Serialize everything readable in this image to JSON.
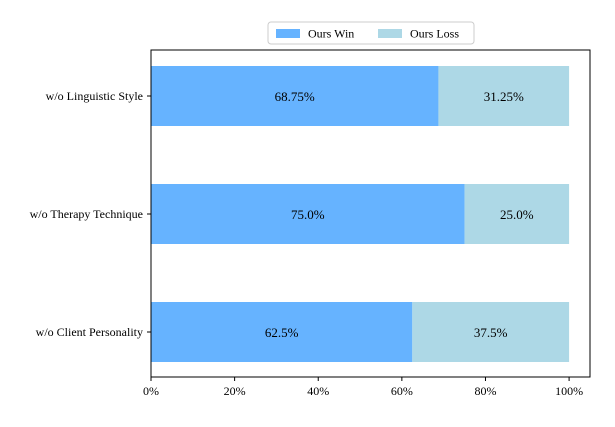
{
  "chart_data": {
    "type": "bar",
    "orientation": "horizontal",
    "stacked": true,
    "categories": [
      "w/o Linguistic Style",
      "w/o Therapy Technique",
      "w/o Client Personality"
    ],
    "series": [
      {
        "name": "Ours Win",
        "values": [
          68.75,
          75.0,
          62.5
        ],
        "labels": [
          "68.75%",
          "75.0%",
          "62.5%"
        ],
        "color": "#66b3ff"
      },
      {
        "name": "Ours Loss",
        "values": [
          31.25,
          25.0,
          37.5
        ],
        "labels": [
          "31.25%",
          "25.0%",
          "37.5%"
        ],
        "color": "#add8e6"
      }
    ],
    "xlim": [
      0,
      105
    ],
    "xticks": [
      0,
      20,
      40,
      60,
      80,
      100
    ],
    "xtick_labels": [
      "0%",
      "20%",
      "40%",
      "60%",
      "80%",
      "100%"
    ],
    "legend_position": "top-center",
    "grid": false
  }
}
